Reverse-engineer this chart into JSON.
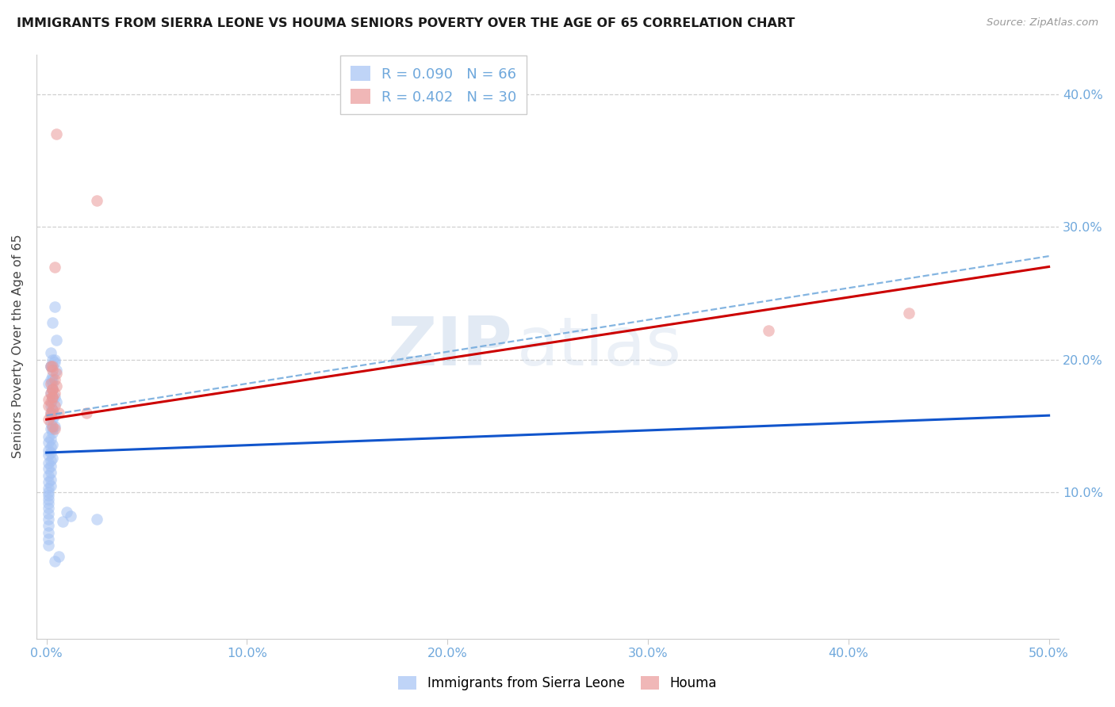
{
  "title": "IMMIGRANTS FROM SIERRA LEONE VS HOUMA SENIORS POVERTY OVER THE AGE OF 65 CORRELATION CHART",
  "source": "Source: ZipAtlas.com",
  "xlabel_blue": "Immigrants from Sierra Leone",
  "xlabel_pink": "Houma",
  "ylabel": "Seniors Poverty Over the Age of 65",
  "xlim": [
    0.0,
    0.5
  ],
  "ylim": [
    0.0,
    0.42
  ],
  "yticks": [
    0.1,
    0.2,
    0.3,
    0.4
  ],
  "ytick_labels": [
    "10.0%",
    "20.0%",
    "30.0%",
    "40.0%"
  ],
  "xticks": [
    0.0,
    0.1,
    0.2,
    0.3,
    0.4,
    0.5
  ],
  "xtick_labels": [
    "0.0%",
    "10.0%",
    "20.0%",
    "30.0%",
    "40.0%",
    "50.0%"
  ],
  "blue_color": "#a4c2f4",
  "pink_color": "#ea9999",
  "blue_line_color": "#1155cc",
  "pink_line_color": "#cc0000",
  "dashed_line_color": "#6fa8dc",
  "axis_color": "#cccccc",
  "tick_label_color": "#6fa8dc",
  "legend_R_blue": "R = 0.090",
  "legend_N_blue": "N = 66",
  "legend_R_pink": "R = 0.402",
  "legend_N_pink": "N = 30",
  "blue_regression": [
    0.13,
    0.158
  ],
  "pink_regression": [
    0.155,
    0.27
  ],
  "dashed_regression": [
    0.158,
    0.278
  ],
  "blue_scatter_x": [
    0.004,
    0.003,
    0.005,
    0.002,
    0.003,
    0.004,
    0.002,
    0.005,
    0.003,
    0.002,
    0.003,
    0.004,
    0.002,
    0.003,
    0.001,
    0.003,
    0.002,
    0.004,
    0.003,
    0.005,
    0.002,
    0.003,
    0.002,
    0.004,
    0.003,
    0.002,
    0.004,
    0.003,
    0.002,
    0.003,
    0.001,
    0.002,
    0.001,
    0.003,
    0.002,
    0.001,
    0.002,
    0.001,
    0.003,
    0.002,
    0.001,
    0.002,
    0.001,
    0.002,
    0.001,
    0.002,
    0.001,
    0.002,
    0.001,
    0.001,
    0.001,
    0.001,
    0.001,
    0.001,
    0.001,
    0.001,
    0.001,
    0.001,
    0.001,
    0.001,
    0.01,
    0.012,
    0.008,
    0.025,
    0.006,
    0.004
  ],
  "blue_scatter_y": [
    0.24,
    0.228,
    0.215,
    0.205,
    0.2,
    0.198,
    0.195,
    0.192,
    0.188,
    0.185,
    0.182,
    0.2,
    0.195,
    0.185,
    0.182,
    0.178,
    0.175,
    0.172,
    0.17,
    0.168,
    0.165,
    0.162,
    0.16,
    0.158,
    0.155,
    0.152,
    0.15,
    0.148,
    0.148,
    0.145,
    0.142,
    0.14,
    0.138,
    0.136,
    0.134,
    0.132,
    0.13,
    0.128,
    0.126,
    0.124,
    0.122,
    0.12,
    0.118,
    0.115,
    0.113,
    0.11,
    0.108,
    0.105,
    0.103,
    0.1,
    0.098,
    0.095,
    0.092,
    0.088,
    0.084,
    0.08,
    0.075,
    0.07,
    0.065,
    0.06,
    0.085,
    0.082,
    0.078,
    0.08,
    0.052,
    0.048
  ],
  "pink_scatter_x": [
    0.002,
    0.003,
    0.005,
    0.003,
    0.004,
    0.002,
    0.003,
    0.002,
    0.003,
    0.001,
    0.002,
    0.001,
    0.003,
    0.002,
    0.004,
    0.002,
    0.003,
    0.001,
    0.005,
    0.004,
    0.003,
    0.006,
    0.02,
    0.025,
    0.003,
    0.004,
    0.36,
    0.43,
    0.005,
    0.004
  ],
  "pink_scatter_y": [
    0.195,
    0.195,
    0.37,
    0.192,
    0.185,
    0.182,
    0.178,
    0.175,
    0.172,
    0.17,
    0.168,
    0.165,
    0.162,
    0.16,
    0.165,
    0.158,
    0.178,
    0.155,
    0.18,
    0.175,
    0.172,
    0.16,
    0.16,
    0.32,
    0.15,
    0.148,
    0.222,
    0.235,
    0.19,
    0.27
  ]
}
